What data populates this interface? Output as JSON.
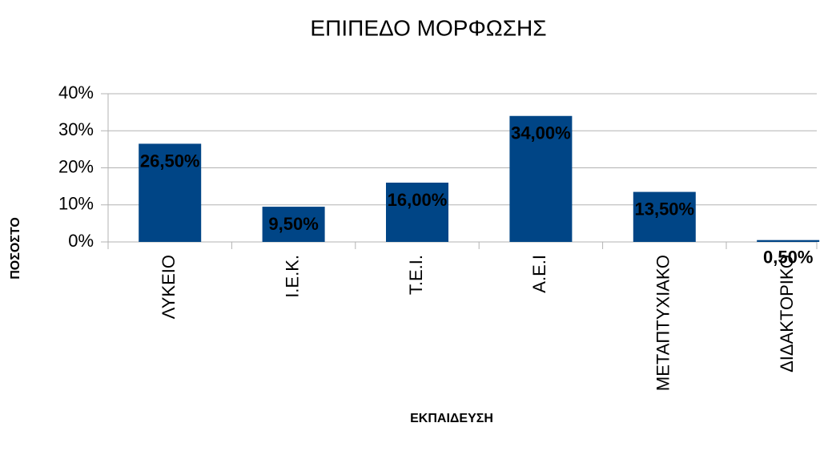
{
  "chart_data": {
    "type": "bar",
    "title": "ΕΠΙΠΕΔΟ ΜΟΡΦΩΣΗΣ",
    "x_label": "ΕΚΠΑΙΔΕΥΣΗ",
    "y_label": "ΠΟΣΟΣΤΟ",
    "categories": [
      "ΛΥΚΕΙΟ",
      "Ι.Ε.Κ.",
      "Τ.Ε.Ι.",
      "Α.Ε.Ι",
      "ΜΕΤΑΠΤΥΧΙΑΚΟ",
      "ΔΙΔΑΚΤΟΡΙΚΟ"
    ],
    "values": [
      26.5,
      9.5,
      16,
      34,
      13.5,
      0.5
    ],
    "value_labels": [
      "26,50%",
      "9,50%",
      "16,00%",
      "34,00%",
      "13,50%",
      "0,50%"
    ],
    "color": "#004586",
    "ylim": [
      0,
      40
    ],
    "yticks": [
      {
        "value": 0,
        "label": "0%"
      },
      {
        "value": 10,
        "label": "10%"
      },
      {
        "value": 20,
        "label": "20%"
      },
      {
        "value": 30,
        "label": "30%"
      },
      {
        "value": 40,
        "label": "40%"
      }
    ],
    "grid": true
  }
}
